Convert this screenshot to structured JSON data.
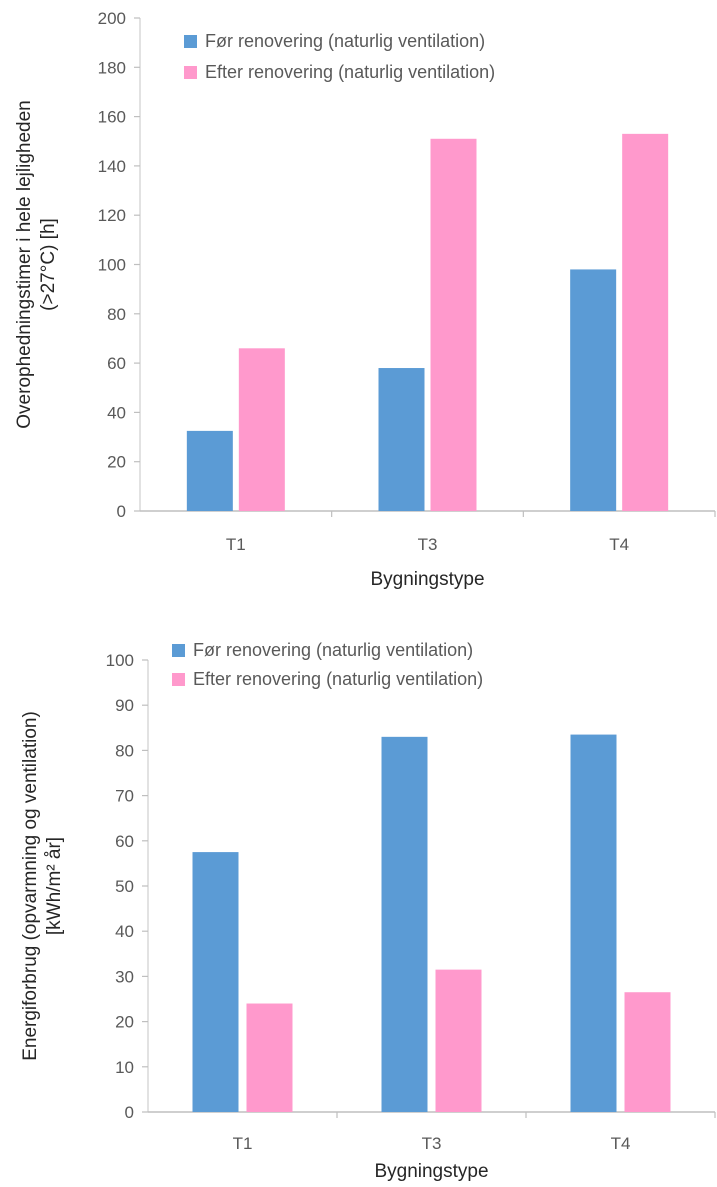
{
  "chart_data": [
    {
      "type": "bar",
      "categories": [
        "T1",
        "T3",
        "T4"
      ],
      "series": [
        {
          "name": "Før renovering (naturlig ventilation)",
          "values": [
            32.5,
            58,
            98
          ],
          "color": "#5b9bd5"
        },
        {
          "name": "Efter renovering (naturlig ventilation)",
          "values": [
            66,
            151,
            153
          ],
          "color": "#ff99cc"
        }
      ],
      "xlabel": "Bygningstype",
      "ylabel_lines": [
        "Overophedningstimer i hele lejligheden",
        "(>27°C) [h]"
      ],
      "ylim": [
        0,
        200
      ],
      "yticks": [
        0,
        20,
        40,
        60,
        80,
        100,
        120,
        140,
        160,
        180,
        200
      ],
      "grid": false,
      "legend": "top-left"
    },
    {
      "type": "bar",
      "categories": [
        "T1",
        "T3",
        "T4"
      ],
      "series": [
        {
          "name": "Før renovering (naturlig ventilation)",
          "values": [
            57.5,
            83,
            83.5
          ],
          "color": "#5b9bd5"
        },
        {
          "name": "Efter renovering (naturlig ventilation)",
          "values": [
            24,
            31.5,
            26.5
          ],
          "color": "#ff99cc"
        }
      ],
      "xlabel": "Bygningstype",
      "ylabel_lines": [
        "Energiforbrug (opvarmning og ventilation)",
        "[kWh/m² år]"
      ],
      "ylim": [
        0,
        100
      ],
      "yticks": [
        0,
        10,
        20,
        30,
        40,
        50,
        60,
        70,
        80,
        90,
        100
      ],
      "grid": false,
      "legend": "top-left"
    }
  ]
}
